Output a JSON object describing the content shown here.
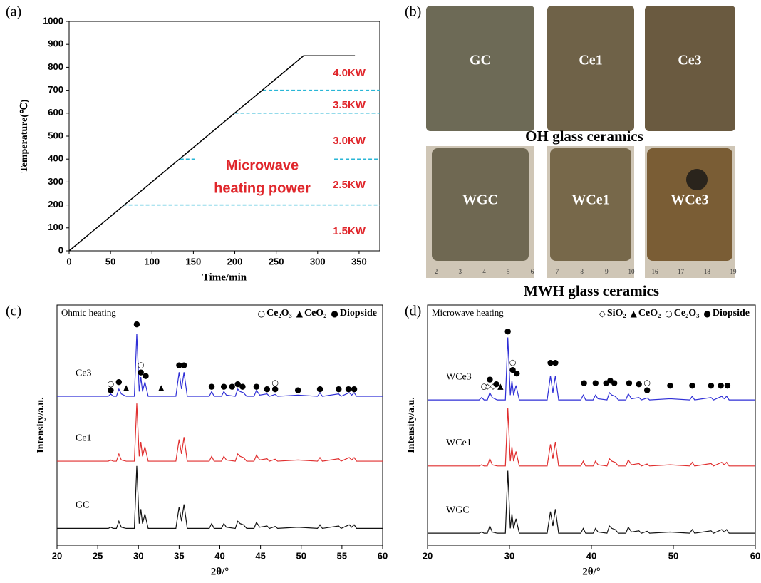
{
  "chart_data": [
    {
      "type": "line",
      "panel_label": "(a)",
      "xlabel": "Time/min",
      "ylabel": "Temperature(℃)",
      "x": [
        0,
        283,
        345
      ],
      "values": [
        0,
        850,
        850
      ],
      "color": "#000000",
      "xlim": [
        0,
        375
      ],
      "xticks": [
        0,
        50,
        100,
        150,
        200,
        250,
        300,
        350
      ],
      "ylim": [
        0,
        1000
      ],
      "yticks": [
        0,
        100,
        200,
        300,
        400,
        500,
        600,
        700,
        800,
        900,
        1000
      ],
      "reference_lines": [
        {
          "y": 200,
          "x": [
            65,
            375
          ]
        },
        {
          "y": 400,
          "x": [
            134,
            153
          ]
        },
        {
          "y": 400,
          "x": [
            320,
            375
          ]
        },
        {
          "y": 600,
          "x": [
            200,
            375
          ]
        },
        {
          "y": 700,
          "x": [
            234,
            375
          ]
        }
      ],
      "reference_color": "#29b6d6",
      "annotations": [
        "4.0KW",
        "3.5KW",
        "3.0KW",
        "2.5KW",
        "1.5KW",
        "Microwave",
        "heating power"
      ],
      "annotation_color": "#e0262b"
    },
    {
      "type": "xrd",
      "panel_label": "(c)",
      "title": "Ohmic heating",
      "xlabel": "2θ/°",
      "ylabel": "Intensity/a.u.",
      "xlim": [
        20,
        60
      ],
      "xticks": [
        20,
        25,
        30,
        35,
        40,
        45,
        50,
        55,
        60
      ],
      "ylim": [
        0,
        100
      ],
      "legend": [
        {
          "symbol": "○",
          "name": "Ce₂O₃"
        },
        {
          "symbol": "▲",
          "name": "CeO₂"
        },
        {
          "symbol": "●",
          "name": "Diopside"
        }
      ],
      "x": [
        20,
        25,
        26.3,
        26.6,
        26.9,
        27.3,
        27.6,
        27.9,
        28.5,
        29.5,
        29.8,
        30.1,
        30.3,
        30.5,
        30.8,
        31.2,
        34.6,
        35.0,
        35.3,
        35.6,
        36.0,
        38.7,
        39.0,
        39.3,
        40.2,
        40.5,
        40.8,
        41.9,
        42.2,
        42.5,
        42.9,
        43.3,
        44.2,
        44.5,
        44.9,
        45.8,
        46.1,
        46.8,
        47.1,
        49.6,
        52.0,
        52.3,
        52.6,
        54.6,
        54.9,
        55.9,
        56.2,
        56.5,
        56.8,
        60
      ],
      "series": [
        {
          "name": "Ce3",
          "color": "#2f2fd6",
          "values": [
            62,
            62,
            62,
            63,
            62,
            62,
            65,
            63,
            62,
            62,
            88,
            64,
            70,
            64,
            68,
            62,
            62,
            72,
            65,
            72,
            62,
            62,
            64,
            62,
            62,
            64,
            62.5,
            62,
            65,
            64,
            63.5,
            62,
            62,
            64.5,
            62.5,
            63,
            62,
            62.8,
            62,
            62.5,
            62,
            63.5,
            62,
            63,
            62,
            63.5,
            62.5,
            63.5,
            62,
            62
          ]
        },
        {
          "name": "Ce1",
          "color": "#e02f2f",
          "values": [
            35,
            35,
            35,
            35.5,
            35,
            35,
            38,
            35.5,
            35,
            35,
            59,
            37,
            43,
            37,
            41,
            35,
            35,
            44,
            38,
            45,
            35,
            35,
            37,
            35,
            35,
            37,
            35.5,
            35,
            38,
            37,
            36.5,
            35,
            35,
            37.5,
            35.5,
            36,
            35,
            35.8,
            35,
            35.5,
            35,
            36.5,
            35,
            36,
            35,
            36.5,
            35.5,
            36.5,
            35,
            35
          ]
        },
        {
          "name": "GC",
          "color": "#111111",
          "values": [
            7,
            7,
            7,
            7.5,
            7,
            7,
            10,
            7.5,
            7,
            7,
            33,
            9,
            15,
            9,
            13,
            7,
            7,
            16,
            10,
            17,
            7,
            7,
            9,
            7,
            7,
            9,
            7.5,
            7,
            10,
            9,
            8.5,
            7,
            7,
            9.5,
            7.5,
            8,
            7,
            7.8,
            7,
            7.5,
            7,
            8.5,
            7,
            8,
            7,
            8.5,
            7.5,
            8.5,
            7,
            7
          ]
        }
      ],
      "markers": [
        {
          "x": 26.6,
          "y": 67,
          "symbol": "○"
        },
        {
          "x": 26.6,
          "y": 64.5,
          "symbol": "●"
        },
        {
          "x": 27.6,
          "y": 68,
          "symbol": "●"
        },
        {
          "x": 28.5,
          "y": 65.5,
          "symbol": "▲"
        },
        {
          "x": 32.8,
          "y": 65.5,
          "symbol": "▲"
        },
        {
          "x": 29.8,
          "y": 92,
          "symbol": "●"
        },
        {
          "x": 30.3,
          "y": 75,
          "symbol": "○"
        },
        {
          "x": 30.3,
          "y": 72,
          "symbol": "●"
        },
        {
          "x": 30.9,
          "y": 70.5,
          "symbol": "●"
        },
        {
          "x": 35.0,
          "y": 75,
          "symbol": "●"
        },
        {
          "x": 35.6,
          "y": 75,
          "symbol": "●"
        },
        {
          "x": 39.0,
          "y": 66,
          "symbol": "●"
        },
        {
          "x": 40.5,
          "y": 66,
          "symbol": "●"
        },
        {
          "x": 41.5,
          "y": 66,
          "symbol": "●"
        },
        {
          "x": 42.2,
          "y": 67,
          "symbol": "●"
        },
        {
          "x": 42.8,
          "y": 66,
          "symbol": "●"
        },
        {
          "x": 44.5,
          "y": 66,
          "symbol": "●"
        },
        {
          "x": 45.8,
          "y": 65,
          "symbol": "●"
        },
        {
          "x": 46.8,
          "y": 67.5,
          "symbol": "○"
        },
        {
          "x": 46.8,
          "y": 65,
          "symbol": "●"
        },
        {
          "x": 49.6,
          "y": 64.5,
          "symbol": "●"
        },
        {
          "x": 52.3,
          "y": 65,
          "symbol": "●"
        },
        {
          "x": 54.6,
          "y": 65,
          "symbol": "●"
        },
        {
          "x": 55.8,
          "y": 65,
          "symbol": "●"
        },
        {
          "x": 56.5,
          "y": 65,
          "symbol": "●"
        }
      ]
    },
    {
      "type": "xrd",
      "panel_label": "(d)",
      "title": "Microwave heating",
      "xlabel": "2θ/°",
      "ylabel": "Intensity/a.u.",
      "xlim": [
        20,
        60
      ],
      "xticks": [
        20,
        30,
        40,
        50,
        60
      ],
      "ylim": [
        0,
        100
      ],
      "legend": [
        {
          "symbol": "◇",
          "name": "SiO₂"
        },
        {
          "symbol": "▲",
          "name": "CeO₂"
        },
        {
          "symbol": "○",
          "name": "Ce₂O₃"
        },
        {
          "symbol": "●",
          "name": "Diopside"
        }
      ],
      "x": [
        20,
        25,
        26.3,
        26.6,
        26.9,
        27.3,
        27.6,
        27.9,
        28.5,
        29.5,
        29.8,
        30.1,
        30.3,
        30.5,
        30.8,
        31.2,
        34.6,
        35.0,
        35.3,
        35.6,
        36.0,
        38.7,
        39.0,
        39.3,
        40.2,
        40.5,
        40.8,
        41.9,
        42.2,
        42.5,
        42.9,
        43.3,
        44.2,
        44.5,
        44.9,
        45.8,
        46.1,
        46.8,
        47.1,
        49.6,
        52.0,
        52.3,
        52.6,
        54.6,
        54.9,
        55.9,
        56.2,
        56.5,
        56.8,
        60
      ],
      "series": [
        {
          "name": "WCe3",
          "color": "#2f2fd6",
          "values": [
            60.5,
            60.5,
            60.5,
            61.5,
            60.5,
            60.5,
            63.5,
            61.5,
            60.5,
            60.5,
            86.5,
            62.5,
            68.5,
            62.5,
            66.5,
            60.5,
            60.5,
            70.5,
            63.5,
            70.5,
            60.5,
            60.5,
            62.5,
            60.5,
            60.5,
            62.5,
            61,
            60.5,
            63.5,
            62.5,
            62,
            60.5,
            60.5,
            63,
            61,
            61.5,
            60.5,
            61.3,
            60.5,
            61,
            60.5,
            62,
            60.5,
            61.5,
            60.5,
            62,
            61,
            62,
            60.5,
            60.5
          ]
        },
        {
          "name": "WCe1",
          "color": "#e02f2f",
          "values": [
            33,
            33,
            33,
            33.5,
            33,
            33,
            36,
            33.5,
            33,
            33,
            57,
            35,
            41,
            35,
            39,
            33,
            33,
            42,
            36,
            43,
            33,
            33,
            35,
            33,
            33,
            35,
            33.5,
            33,
            36,
            35,
            34.5,
            33,
            33,
            35.5,
            33.5,
            34,
            33,
            33.8,
            33,
            33.5,
            33,
            34.5,
            33,
            34,
            33,
            34.5,
            33.5,
            34.5,
            33,
            33
          ]
        },
        {
          "name": "WGC",
          "color": "#111111",
          "values": [
            5,
            5,
            5,
            5.5,
            5,
            5,
            8,
            5.5,
            5,
            5,
            31,
            7,
            13,
            7,
            11,
            5,
            5,
            14,
            8,
            15,
            5,
            5,
            7,
            5,
            5,
            7,
            5.5,
            5,
            8,
            7,
            6.5,
            5,
            5,
            7.5,
            5.5,
            6,
            5,
            5.8,
            5,
            5.5,
            5,
            6.5,
            5,
            6,
            5,
            6.5,
            5.5,
            6.5,
            5,
            5
          ]
        }
      ],
      "markers": [
        {
          "x": 26.9,
          "y": 66,
          "symbol": "○"
        },
        {
          "x": 27.3,
          "y": 66,
          "symbol": "◇"
        },
        {
          "x": 27.6,
          "y": 69,
          "symbol": "●"
        },
        {
          "x": 28.0,
          "y": 66,
          "symbol": "◇"
        },
        {
          "x": 28.4,
          "y": 67,
          "symbol": "●"
        },
        {
          "x": 28.9,
          "y": 66,
          "symbol": "▲"
        },
        {
          "x": 29.8,
          "y": 89,
          "symbol": "●"
        },
        {
          "x": 30.4,
          "y": 76,
          "symbol": "○"
        },
        {
          "x": 30.4,
          "y": 73,
          "symbol": "●"
        },
        {
          "x": 30.9,
          "y": 71.5,
          "symbol": "●"
        },
        {
          "x": 35.0,
          "y": 76,
          "symbol": "●"
        },
        {
          "x": 35.6,
          "y": 76,
          "symbol": "●"
        },
        {
          "x": 39.1,
          "y": 67.5,
          "symbol": "●"
        },
        {
          "x": 40.5,
          "y": 67.5,
          "symbol": "●"
        },
        {
          "x": 41.8,
          "y": 67.5,
          "symbol": "●"
        },
        {
          "x": 42.3,
          "y": 68.5,
          "symbol": "●"
        },
        {
          "x": 42.8,
          "y": 67.5,
          "symbol": "●"
        },
        {
          "x": 44.6,
          "y": 67.5,
          "symbol": "●"
        },
        {
          "x": 45.8,
          "y": 67,
          "symbol": "●"
        },
        {
          "x": 46.8,
          "y": 67.5,
          "symbol": "○"
        },
        {
          "x": 46.8,
          "y": 64.5,
          "symbol": "●"
        },
        {
          "x": 49.6,
          "y": 66.5,
          "symbol": "●"
        },
        {
          "x": 52.3,
          "y": 66.5,
          "symbol": "●"
        },
        {
          "x": 54.6,
          "y": 66.5,
          "symbol": "●"
        },
        {
          "x": 55.8,
          "y": 66.5,
          "symbol": "●"
        },
        {
          "x": 56.6,
          "y": 66.5,
          "symbol": "●"
        }
      ]
    }
  ],
  "photos": {
    "panel_label": "(b)",
    "samples": [
      "GC",
      "Ce1",
      "Ce3",
      "WGC",
      "WCe1",
      "WCe3"
    ],
    "captions": [
      "OH glass ceramics",
      "MWH glass ceramics"
    ],
    "rulers": [
      [
        "2",
        "3",
        "4",
        "5",
        "6"
      ],
      [
        "7",
        "8",
        "9",
        "10"
      ],
      [
        "16",
        "17",
        "18",
        "19"
      ]
    ]
  }
}
